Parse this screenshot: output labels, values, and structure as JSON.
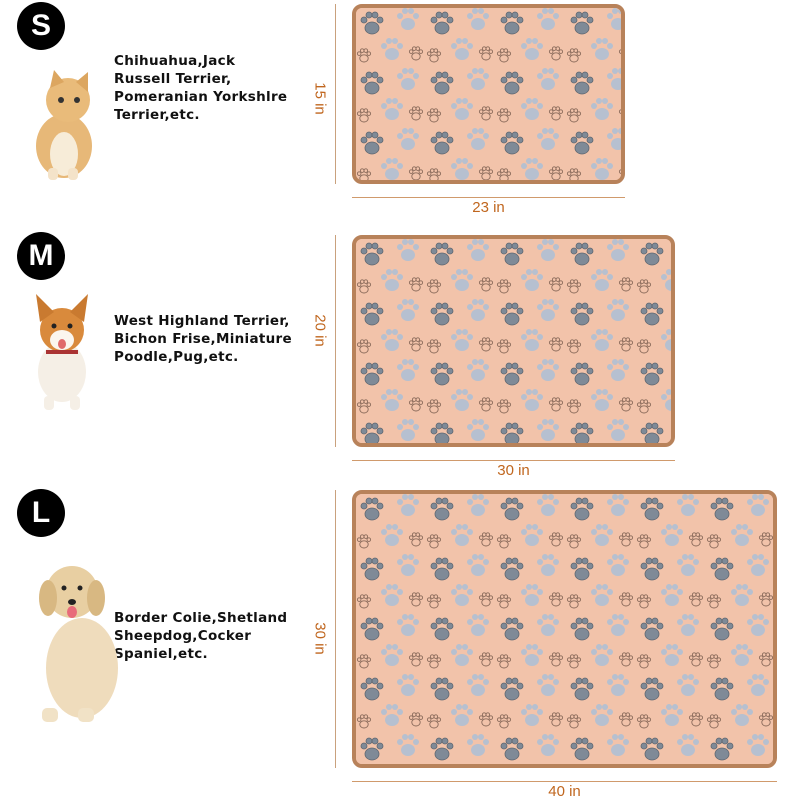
{
  "colors": {
    "mat": "#f2c3aa",
    "mat_border": "#b8825a",
    "paw_dark": "#7f8a97",
    "paw_light": "#b6c0d0",
    "dimension": "#c0661e",
    "badge": "#000000"
  },
  "sizes": [
    {
      "badge": "S",
      "breeds": [
        "Chihuahua,Jack",
        "Russell Terrier,",
        "Pomeranian Yorkshlre",
        "Terrier,etc."
      ],
      "height": "15 in",
      "width": "23 in",
      "pet": "cat"
    },
    {
      "badge": "M",
      "breeds": [
        "West Highland Terrier,",
        "Bichon Frise,Miniature",
        "Poodle,Pug,etc."
      ],
      "height": "20 in",
      "width": "30 in",
      "pet": "corgi"
    },
    {
      "badge": "L",
      "breeds": [
        "Border Colie,Shetland",
        "Sheepdog,Cocker",
        "Spaniel,etc."
      ],
      "height": "30 in",
      "width": "40 in",
      "pet": "golden-retriever"
    }
  ]
}
